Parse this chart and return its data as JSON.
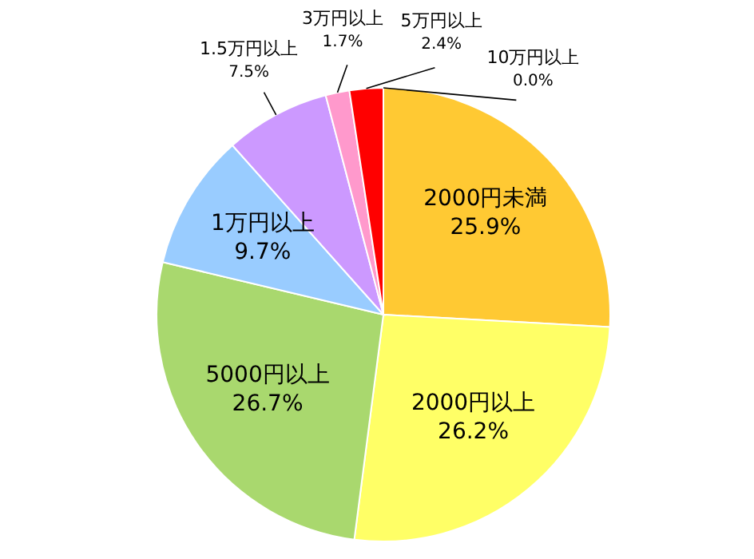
{
  "chart_data": {
    "type": "pie",
    "categories": [
      "2000円未満",
      "2000円以上",
      "5000円以上",
      "1万円以上",
      "1.5万円以上",
      "3万円以上",
      "5万円以上",
      "10万円以上"
    ],
    "values": [
      25.9,
      26.2,
      26.7,
      9.7,
      7.5,
      1.7,
      2.4,
      0.0
    ],
    "value_labels": [
      "25.9%",
      "26.2%",
      "26.7%",
      "9.7%",
      "7.5%",
      "1.7%",
      "2.4%",
      "0.0%"
    ],
    "colors": [
      "#ffc933",
      "#ffff66",
      "#a9d86e",
      "#99ccff",
      "#cc99ff",
      "#ff99cc",
      "#ff0000",
      "#c0504d"
    ]
  }
}
